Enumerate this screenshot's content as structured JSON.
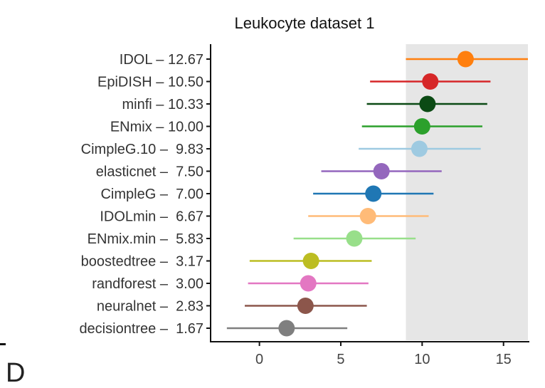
{
  "panel_label": "D",
  "chart_data": {
    "type": "scatter",
    "title": "Leukocyte dataset 1",
    "xlabel": "",
    "xlim": [
      -3,
      16.5
    ],
    "xticks": [
      0,
      5,
      10,
      15
    ],
    "shaded_region": [
      9,
      16.5
    ],
    "grid": false,
    "legend": "none",
    "points": [
      {
        "label": "IDOL – 12.67",
        "value": 12.67,
        "low": 9.0,
        "high": 16.5,
        "color": "#ff7f0e"
      },
      {
        "label": "EpiDISH – 10.50",
        "value": 10.5,
        "low": 6.8,
        "high": 14.2,
        "color": "#d62728"
      },
      {
        "label": "minfi – 10.33",
        "value": 10.33,
        "low": 6.6,
        "high": 14.0,
        "color": "#0b4a14"
      },
      {
        "label": "ENmix – 10.00",
        "value": 10.0,
        "low": 6.3,
        "high": 13.7,
        "color": "#2ca02c"
      },
      {
        "label": "CimpleG.10 –  9.83",
        "value": 9.83,
        "low": 6.1,
        "high": 13.6,
        "color": "#9ecae1"
      },
      {
        "label": "elasticnet –  7.50",
        "value": 7.5,
        "low": 3.8,
        "high": 11.2,
        "color": "#9467bd"
      },
      {
        "label": "CimpleG –  7.00",
        "value": 7.0,
        "low": 3.3,
        "high": 10.7,
        "color": "#1f77b4"
      },
      {
        "label": "IDOLmin –  6.67",
        "value": 6.67,
        "low": 3.0,
        "high": 10.4,
        "color": "#ffbb78"
      },
      {
        "label": "ENmix.min –  5.83",
        "value": 5.83,
        "low": 2.1,
        "high": 9.6,
        "color": "#98df8a"
      },
      {
        "label": "boostedtree –  3.17",
        "value": 3.17,
        "low": -0.6,
        "high": 6.9,
        "color": "#bcbd22"
      },
      {
        "label": "randforest –  3.00",
        "value": 3.0,
        "low": -0.7,
        "high": 6.7,
        "color": "#e377c2"
      },
      {
        "label": "neuralnet –  2.83",
        "value": 2.83,
        "low": -0.9,
        "high": 6.6,
        "color": "#8c564b"
      },
      {
        "label": "decisiontree –  1.67",
        "value": 1.67,
        "low": -2.0,
        "high": 5.4,
        "color": "#7f7f7f"
      }
    ]
  }
}
